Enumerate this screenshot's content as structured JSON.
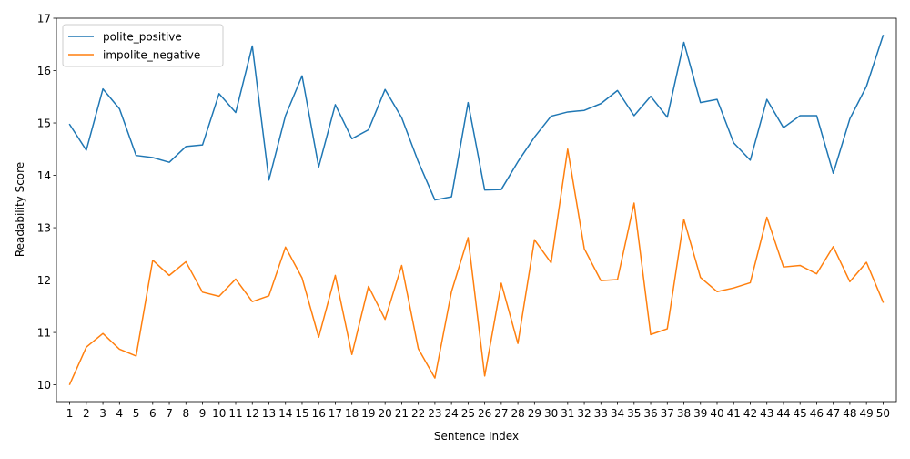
{
  "chart_data": {
    "type": "line",
    "xlabel": "Sentence Index",
    "ylabel": "Readability Score",
    "x": [
      1,
      2,
      3,
      4,
      5,
      6,
      7,
      8,
      9,
      10,
      11,
      12,
      13,
      14,
      15,
      16,
      17,
      18,
      19,
      20,
      21,
      22,
      23,
      24,
      25,
      26,
      27,
      28,
      29,
      30,
      31,
      32,
      33,
      34,
      35,
      36,
      37,
      38,
      39,
      40,
      41,
      42,
      43,
      44,
      45,
      46,
      47,
      48,
      49,
      50
    ],
    "xlim": [
      0.2,
      50.8
    ],
    "ylim": [
      9.68,
      17.0
    ],
    "yticks": [
      10,
      11,
      12,
      13,
      14,
      15,
      16,
      17
    ],
    "legend_position": "upper-left",
    "series": [
      {
        "name": "polite_positive",
        "color": "#1f77b4",
        "values": [
          14.97,
          14.48,
          15.65,
          15.27,
          14.38,
          14.34,
          14.25,
          14.55,
          14.58,
          15.56,
          15.2,
          16.47,
          13.91,
          15.14,
          15.9,
          14.16,
          15.35,
          14.7,
          14.87,
          15.64,
          15.1,
          14.26,
          13.53,
          13.59,
          15.39,
          13.72,
          13.73,
          14.26,
          14.73,
          15.13,
          15.21,
          15.24,
          15.37,
          15.62,
          15.14,
          15.51,
          15.11,
          16.54,
          15.39,
          15.45,
          14.62,
          14.29,
          15.45,
          14.91,
          15.14,
          15.14,
          14.04,
          15.08,
          15.7,
          16.67
        ]
      },
      {
        "name": "impolite_negative",
        "color": "#ff7f0e",
        "values": [
          10.01,
          10.72,
          10.98,
          10.68,
          10.55,
          12.38,
          12.09,
          12.35,
          11.77,
          11.69,
          12.02,
          11.59,
          11.7,
          12.63,
          12.04,
          10.91,
          12.09,
          10.58,
          11.88,
          11.25,
          12.28,
          10.69,
          10.13,
          11.78,
          12.81,
          10.17,
          11.94,
          10.79,
          12.77,
          12.33,
          14.5,
          12.6,
          11.99,
          12.01,
          13.47,
          10.96,
          11.07,
          13.16,
          12.05,
          11.78,
          11.85,
          11.95,
          13.2,
          12.25,
          12.28,
          12.12,
          12.64,
          11.97,
          12.34,
          11.58
        ]
      }
    ]
  }
}
